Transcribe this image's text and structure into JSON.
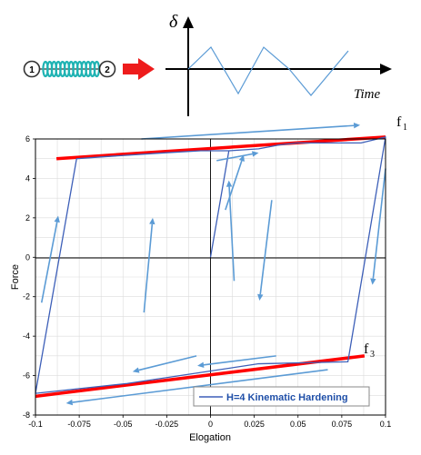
{
  "colors": {
    "hysteresis": "#3d5fb8",
    "arrow": "#5b9bd5",
    "bounds": "#ff0000",
    "spring": "#1fb3b3",
    "bigarrow": "#ee1c1c",
    "grid": "#dcdcdc"
  },
  "schematic": {
    "node1_label": "1",
    "node2_label": "2",
    "y_symbol": "δ",
    "x_label": "Time"
  },
  "annotations": {
    "upper_bound": {
      "label": "f",
      "sub": "1"
    },
    "lower_bound": {
      "label": "f",
      "sub": "3"
    }
  },
  "chart_data": {
    "type": "line",
    "xlabel": "Elogation",
    "ylabel": "Force",
    "xlim": [
      -0.1,
      0.1
    ],
    "ylim": [
      -8,
      6
    ],
    "xticks": [
      -0.1,
      -0.075,
      -0.05,
      -0.025,
      0,
      0.025,
      0.05,
      0.075,
      0.1
    ],
    "xtick_labels": [
      "-0.1",
      "-0.075",
      "-0.05",
      "-0.025",
      "0",
      "0.025",
      "0.05",
      "0.075",
      "0.1"
    ],
    "yticks": [
      -8,
      -6,
      -4,
      -2,
      0,
      2,
      4,
      6
    ],
    "ytick_labels": [
      "-8",
      "-6",
      "-4",
      "-2",
      "0",
      "2",
      "4",
      "6"
    ],
    "grid": true,
    "legend_position": "bottom-right",
    "series": [
      {
        "name": "H=4 Kinematic Hardening",
        "x": [
          0,
          0.0105,
          0.0275,
          0.0395,
          0.0495,
          0.086,
          0.1,
          0.0785,
          0.0275,
          -0.0475,
          -0.1,
          -0.1,
          -0.0765,
          -0.0605,
          -0.0255,
          -0.0055,
          0.0105
        ],
        "y": [
          0,
          5.4,
          5.5,
          5.7,
          5.8,
          5.8,
          6.1,
          -5.3,
          -5.4,
          -6.4,
          -6.9,
          -6.9,
          5.0,
          5.1,
          5.3,
          5.4,
          5.4
        ]
      }
    ],
    "bounds": [
      {
        "label": "f1",
        "x": [
          -0.088,
          0.1
        ],
        "y": [
          5.0,
          6.1
        ]
      },
      {
        "label": "f3",
        "x": [
          -0.1,
          0.088
        ],
        "y": [
          -7.05,
          -5.0
        ]
      }
    ],
    "direction_arrows": [
      {
        "x": [
          -0.0965,
          -0.087
        ],
        "y": [
          -2.3,
          2.1
        ]
      },
      {
        "x": [
          -0.038,
          -0.033
        ],
        "y": [
          -2.8,
          2.0
        ]
      },
      {
        "x": [
          0.0135,
          0.0105
        ],
        "y": [
          -1.2,
          3.9
        ]
      },
      {
        "x": [
          0.0085,
          0.019
        ],
        "y": [
          2.4,
          5.2
        ]
      },
      {
        "x": [
          0.0035,
          0.0275
        ],
        "y": [
          4.9,
          5.3
        ]
      },
      {
        "x": [
          -0.0395,
          0.0855
        ],
        "y": [
          6.0,
          6.7
        ]
      },
      {
        "x": [
          0.1,
          0.0925
        ],
        "y": [
          4.5,
          -1.4
        ]
      },
      {
        "x": [
          0.035,
          0.028
        ],
        "y": [
          2.9,
          -2.2
        ]
      },
      {
        "x": [
          0.0375,
          -0.0075
        ],
        "y": [
          -5.0,
          -5.5
        ]
      },
      {
        "x": [
          -0.008,
          -0.0445
        ],
        "y": [
          -5.0,
          -5.8
        ]
      },
      {
        "x": [
          0.067,
          -0.0825
        ],
        "y": [
          -5.7,
          -7.4
        ]
      }
    ]
  }
}
